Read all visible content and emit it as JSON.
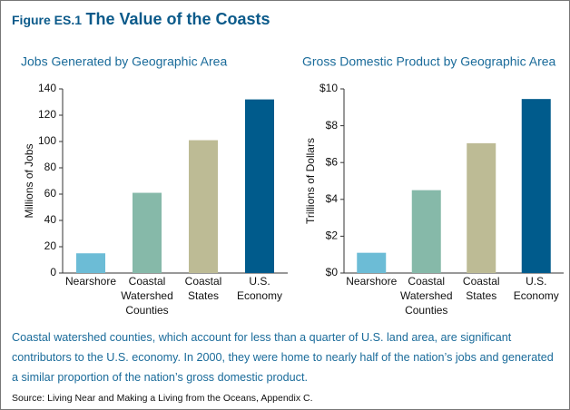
{
  "figure": {
    "label": "Figure ES.1",
    "title": "The Value of the Coasts",
    "caption": "Coastal watershed counties, which account for less than a quarter of U.S. land area, are significant contributors to the U.S. economy. In 2000, they were home to nearly half of the nation’s jobs and generated a similar proportion of the nation’s gross domestic product.",
    "source": "Source: Living Near and Making a Living from the Oceans, Appendix C."
  },
  "chart_data": [
    {
      "type": "bar",
      "title": "Jobs Generated by Geographic Area",
      "y_label": "Millions of Jobs",
      "categories": [
        "Nearshore",
        "Coastal Watershed Counties",
        "Coastal States",
        "U.S. Economy"
      ],
      "values": [
        15,
        61,
        101,
        132
      ],
      "colors": [
        "#6cbcd6",
        "#86b9a9",
        "#bdbb95",
        "#005b8c"
      ],
      "ylim": [
        0,
        140
      ],
      "yticks": [
        0,
        20,
        40,
        60,
        80,
        100,
        120,
        140
      ]
    },
    {
      "type": "bar",
      "title": "Gross Domestic Product by Geographic Area",
      "y_label": "Trillions of Dollars",
      "categories": [
        "Nearshore",
        "Coastal Watershed Counties",
        "Coastal States",
        "U.S. Economy"
      ],
      "values": [
        1.1,
        4.5,
        7.05,
        9.45
      ],
      "colors": [
        "#6cbcd6",
        "#86b9a9",
        "#bdbb95",
        "#005b8c"
      ],
      "ylim": [
        0,
        10
      ],
      "yticks": [
        {
          "value": 0,
          "label": "$0"
        },
        {
          "value": 2,
          "label": "$2"
        },
        {
          "value": 4,
          "label": "$4"
        },
        {
          "value": 6,
          "label": "$6"
        },
        {
          "value": 8,
          "label": "$8"
        },
        {
          "value": 10,
          "label": "$10"
        }
      ]
    }
  ]
}
